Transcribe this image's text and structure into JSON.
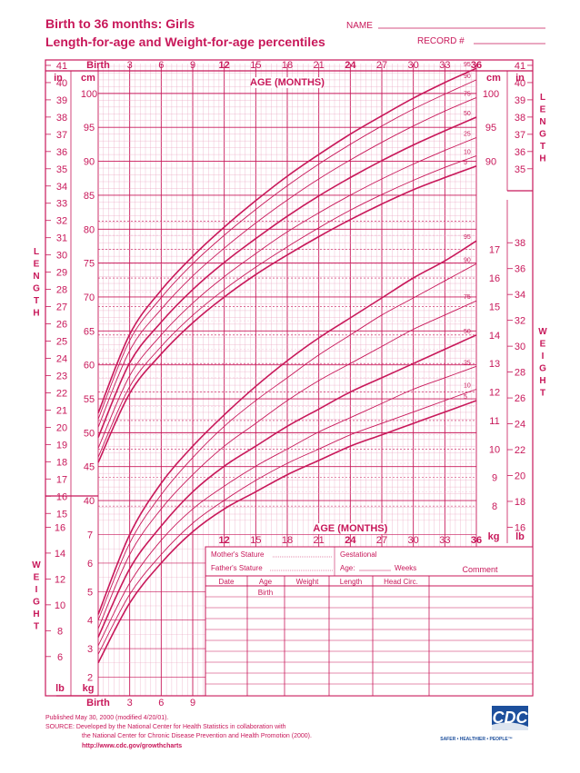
{
  "header": {
    "title_line1": "Birth to 36 months: Girls",
    "title_line2": "Length-for-age and Weight-for-age percentiles",
    "name_label": "NAME",
    "record_label": "RECORD #"
  },
  "axis": {
    "age_title": "AGE (MONTHS)",
    "unit_in": "in",
    "unit_cm": "cm",
    "unit_kg": "kg",
    "unit_lb": "lb",
    "length_word": "LENGTH",
    "weight_word": "WEIGHT",
    "birth_label": "Birth",
    "top_ticks": [
      "Birth",
      "3",
      "6",
      "9",
      "12",
      "15",
      "18",
      "21",
      "24",
      "27",
      "30",
      "33",
      "36"
    ],
    "mid_ticks": [
      "12",
      "15",
      "18",
      "21",
      "24",
      "27",
      "30",
      "33",
      "36"
    ],
    "bottom_ticks": [
      "Birth",
      "3",
      "6",
      "9"
    ],
    "length_in_left": [
      "41",
      "40",
      "39",
      "38",
      "37",
      "36",
      "35",
      "34",
      "33",
      "32",
      "31",
      "30",
      "29",
      "28",
      "27",
      "26",
      "25",
      "24",
      "23",
      "22",
      "21",
      "20",
      "19",
      "18",
      "17",
      "16",
      "15"
    ],
    "length_cm_left": [
      "100",
      "95",
      "90",
      "85",
      "80",
      "75",
      "70",
      "65",
      "60",
      "55",
      "50",
      "45",
      "40"
    ],
    "length_in_right": [
      "41",
      "40",
      "39",
      "38",
      "37",
      "36",
      "35"
    ],
    "length_cm_right": [
      "100",
      "95",
      "90"
    ],
    "weight_kg_right": [
      "17",
      "16",
      "15",
      "14",
      "13",
      "12",
      "11",
      "10",
      "9",
      "8"
    ],
    "weight_lb_right": [
      "38",
      "36",
      "34",
      "32",
      "30",
      "28",
      "26",
      "24",
      "22",
      "20",
      "18",
      "16"
    ],
    "weight_lb_left": [
      "16",
      "14",
      "12",
      "10",
      "8",
      "6"
    ],
    "weight_kg_left": [
      "7",
      "6",
      "5",
      "4",
      "3",
      "2"
    ]
  },
  "table": {
    "mother_stature": "Mother's Stature",
    "father_stature": "Father's Stature",
    "gestational": "Gestational",
    "age_weeks": "Age:",
    "weeks": "Weeks",
    "comment": "Comment",
    "columns": [
      "Date",
      "Age",
      "Weight",
      "Length",
      "Head Circ."
    ],
    "first_row_age": "Birth"
  },
  "footer": {
    "published": "Published May 30, 2000 (modified 4/20/01).",
    "source_line1": "SOURCE: Developed by the National Center for Health Statistics in collaboration with",
    "source_line2": "the National Center for Chronic Disease Prevention and Health Promotion (2000).",
    "url": "http://www.cdc.gov/growthcharts",
    "logo_text": "CDC",
    "tagline": "SAFER • HEALTHIER • PEOPLE™"
  },
  "colors": {
    "ink": "#c8185a",
    "grid": "#e9a3c0",
    "cdc_blue": "#1d4f9c"
  },
  "chart_data": [
    {
      "type": "line",
      "title": "Length-for-age",
      "xlabel": "AGE (MONTHS)",
      "ylabel": "LENGTH",
      "xlim": [
        0,
        36
      ],
      "ylim_cm": [
        38,
        104
      ],
      "x": [
        0,
        3,
        6,
        9,
        12,
        15,
        18,
        21,
        24,
        27,
        30,
        33,
        36
      ],
      "series": [
        {
          "name": "5",
          "values": [
            45.6,
            55.8,
            61.6,
            66.2,
            70.0,
            73.3,
            76.2,
            78.9,
            81.4,
            83.7,
            85.8,
            87.6,
            89.3
          ]
        },
        {
          "name": "10",
          "values": [
            46.4,
            56.8,
            62.7,
            67.3,
            71.1,
            74.4,
            77.4,
            80.2,
            82.8,
            85.1,
            87.2,
            89.1,
            90.8
          ]
        },
        {
          "name": "25",
          "values": [
            47.7,
            58.4,
            64.4,
            69.1,
            73.0,
            76.4,
            79.6,
            82.4,
            85.0,
            87.4,
            89.6,
            91.6,
            93.5
          ]
        },
        {
          "name": "50",
          "values": [
            49.3,
            60.3,
            66.3,
            71.1,
            75.1,
            78.6,
            81.9,
            84.9,
            87.6,
            90.1,
            92.4,
            94.5,
            96.5
          ]
        },
        {
          "name": "75",
          "values": [
            50.8,
            62.1,
            68.2,
            73.1,
            77.2,
            80.9,
            84.3,
            87.4,
            90.2,
            92.8,
            95.2,
            97.4,
            99.4
          ]
        },
        {
          "name": "90",
          "values": [
            52.0,
            63.6,
            69.9,
            74.9,
            79.1,
            82.9,
            86.4,
            89.6,
            92.5,
            95.2,
            97.7,
            99.9,
            102.0
          ]
        },
        {
          "name": "95",
          "values": [
            52.9,
            64.5,
            71.0,
            76.0,
            80.3,
            84.2,
            87.8,
            91.0,
            94.0,
            96.7,
            99.3,
            101.6,
            103.7
          ]
        }
      ]
    },
    {
      "type": "line",
      "title": "Weight-for-age",
      "xlabel": "AGE (MONTHS)",
      "ylabel": "WEIGHT",
      "xlim": [
        0,
        36
      ],
      "ylim_kg": [
        1.6,
        18.2
      ],
      "x": [
        0,
        3,
        6,
        9,
        12,
        15,
        18,
        21,
        24,
        27,
        30,
        33,
        36
      ],
      "series": [
        {
          "name": "5",
          "values": [
            2.5,
            4.6,
            6.0,
            7.1,
            7.9,
            8.5,
            9.1,
            9.6,
            10.1,
            10.5,
            10.9,
            11.3,
            11.7
          ]
        },
        {
          "name": "10",
          "values": [
            2.8,
            4.9,
            6.3,
            7.4,
            8.2,
            8.9,
            9.5,
            10.0,
            10.5,
            10.9,
            11.3,
            11.7,
            12.1
          ]
        },
        {
          "name": "25",
          "values": [
            3.1,
            5.3,
            6.8,
            7.9,
            8.7,
            9.4,
            10.0,
            10.6,
            11.1,
            11.6,
            12.1,
            12.5,
            12.9
          ]
        },
        {
          "name": "50",
          "values": [
            3.4,
            5.8,
            7.3,
            8.5,
            9.4,
            10.1,
            10.8,
            11.4,
            12.0,
            12.5,
            13.0,
            13.5,
            14.0
          ]
        },
        {
          "name": "75",
          "values": [
            3.7,
            6.3,
            7.9,
            9.1,
            10.1,
            10.9,
            11.7,
            12.4,
            13.0,
            13.6,
            14.2,
            14.7,
            15.2
          ]
        },
        {
          "name": "90",
          "values": [
            4.0,
            6.7,
            8.4,
            9.7,
            10.8,
            11.7,
            12.5,
            13.3,
            14.0,
            14.7,
            15.3,
            15.9,
            16.5
          ]
        },
        {
          "name": "95",
          "values": [
            4.2,
            7.0,
            8.8,
            10.1,
            11.2,
            12.2,
            13.1,
            13.9,
            14.6,
            15.3,
            16.0,
            16.6,
            17.3
          ]
        }
      ]
    }
  ]
}
